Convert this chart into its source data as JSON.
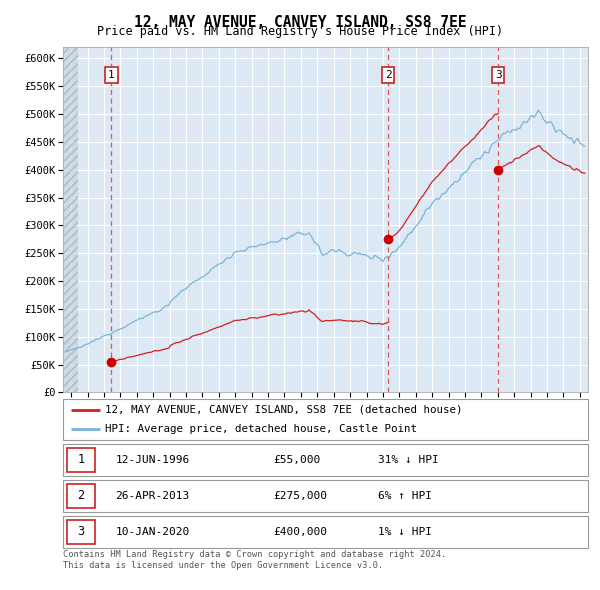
{
  "title": "12, MAY AVENUE, CANVEY ISLAND, SS8 7EE",
  "subtitle": "Price paid vs. HM Land Registry's House Price Index (HPI)",
  "hpi_line_color": "#7ab4d8",
  "price_line_color": "#cc2222",
  "sale_marker_color": "#cc0000",
  "dashed_line_color": "#dd4444",
  "plot_bg_color": "#dce9f5",
  "grid_color": "#ffffff",
  "ylim": [
    0,
    620000
  ],
  "yticks": [
    0,
    50000,
    100000,
    150000,
    200000,
    250000,
    300000,
    350000,
    400000,
    450000,
    500000,
    550000,
    600000
  ],
  "ytick_labels": [
    "£0",
    "£50K",
    "£100K",
    "£150K",
    "£200K",
    "£250K",
    "£300K",
    "£350K",
    "£400K",
    "£450K",
    "£500K",
    "£550K",
    "£600K"
  ],
  "xlim_start": 1993.5,
  "xlim_end": 2025.5,
  "hatch_end": 1994.42,
  "sales": [
    {
      "date": 1996.45,
      "price": 55000,
      "label": "1"
    },
    {
      "date": 2013.32,
      "price": 275000,
      "label": "2"
    },
    {
      "date": 2020.03,
      "price": 400000,
      "label": "3"
    }
  ],
  "legend_entries": [
    {
      "label": "12, MAY AVENUE, CANVEY ISLAND, SS8 7EE (detached house)",
      "color": "#cc2222"
    },
    {
      "label": "HPI: Average price, detached house, Castle Point",
      "color": "#7ab4d8"
    }
  ],
  "table_rows": [
    {
      "num": "1",
      "date": "12-JUN-1996",
      "price": "£55,000",
      "hpi": "31% ↓ HPI"
    },
    {
      "num": "2",
      "date": "26-APR-2013",
      "price": "£275,000",
      "hpi": "6% ↑ HPI"
    },
    {
      "num": "3",
      "date": "10-JAN-2020",
      "price": "£400,000",
      "hpi": "1% ↓ HPI"
    }
  ],
  "footnote": "Contains HM Land Registry data © Crown copyright and database right 2024.\nThis data is licensed under the Open Government Licence v3.0."
}
